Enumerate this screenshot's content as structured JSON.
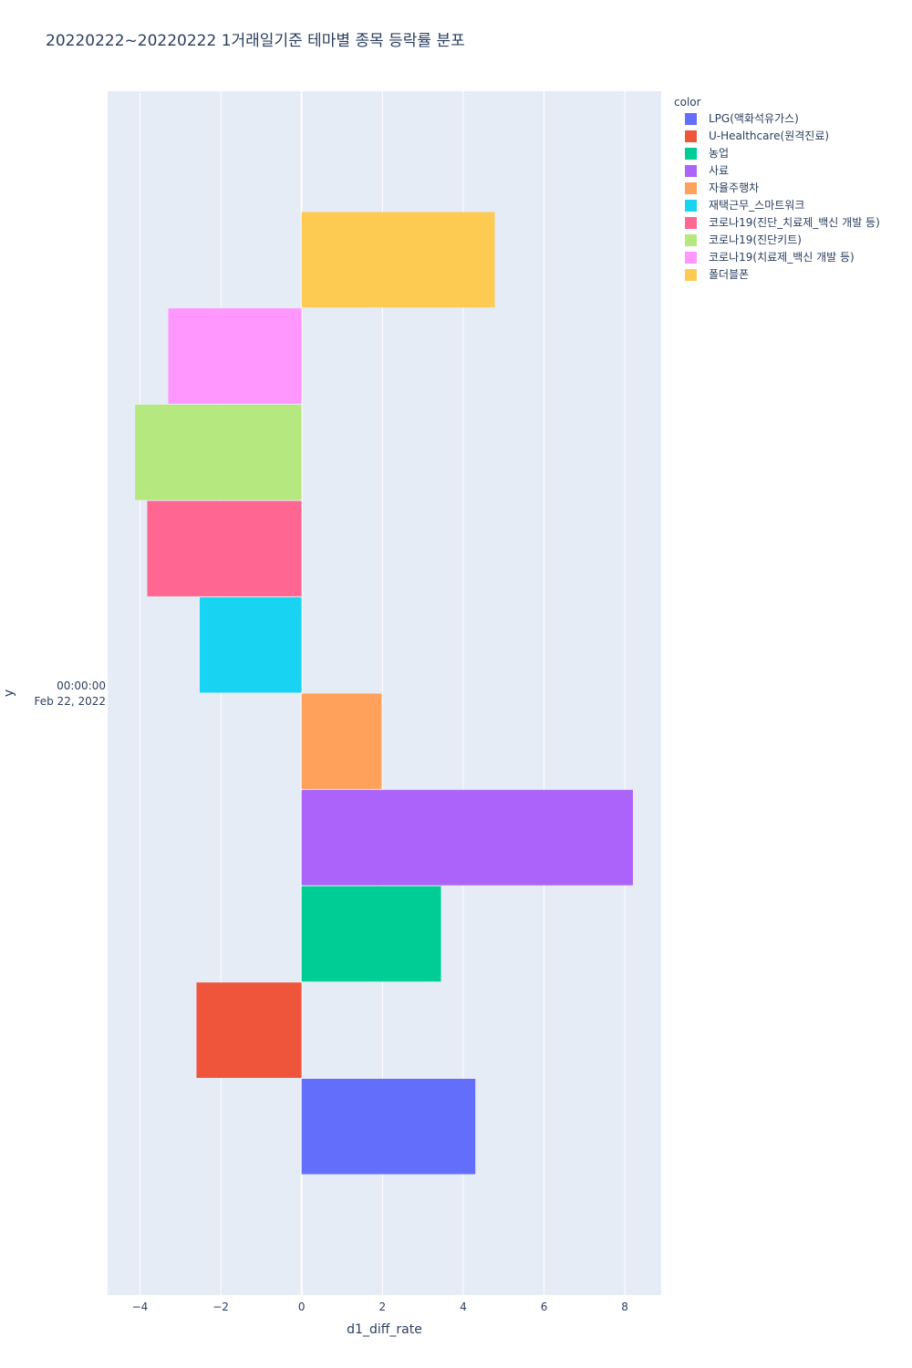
{
  "chart_data": {
    "type": "bar",
    "orientation": "horizontal",
    "barmode": "group",
    "title": "20220222~20220222 1거래일기준 테마별 종목 등락률 분포",
    "xlabel": "d1_diff_rate",
    "ylabel": "y",
    "category_label_lines": [
      "00:00:00",
      "Feb 22, 2022"
    ],
    "xlim": [
      -4.8,
      8.9
    ],
    "xticks": [
      -4,
      -2,
      0,
      2,
      4,
      6,
      8
    ],
    "xtick_labels": [
      "−4",
      "−2",
      "0",
      "2",
      "4",
      "6",
      "8"
    ],
    "grid": true,
    "legend_title": "color",
    "legend_position": "top-right",
    "plot_background": "#e5ecf6",
    "series": [
      {
        "name": "LPG(액화석유가스)",
        "value": 4.3,
        "color": "#636efa"
      },
      {
        "name": "U-Healthcare(원격진료)",
        "value": -2.6,
        "color": "#ef553b"
      },
      {
        "name": "농업",
        "value": 3.45,
        "color": "#00cc96"
      },
      {
        "name": "사료",
        "value": 8.2,
        "color": "#ab63fa"
      },
      {
        "name": "자율주행차",
        "value": 1.98,
        "color": "#ffa15a"
      },
      {
        "name": "재택근무_스마트워크",
        "value": -2.52,
        "color": "#19d3f3"
      },
      {
        "name": "코로나19(진단_치료제_백신 개발 등)",
        "value": -3.82,
        "color": "#ff6692"
      },
      {
        "name": "코로나19(진단키트)",
        "value": -4.12,
        "color": "#b6e880"
      },
      {
        "name": "코로나19(치료제_백신 개발 등)",
        "value": -3.3,
        "color": "#ff97ff"
      },
      {
        "name": "폴더블폰",
        "value": 4.78,
        "color": "#fecb52"
      }
    ]
  }
}
